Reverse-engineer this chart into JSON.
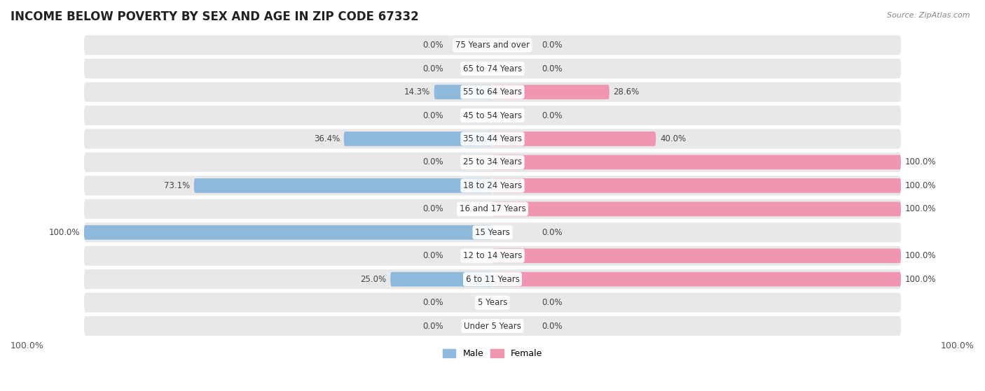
{
  "title": "INCOME BELOW POVERTY BY SEX AND AGE IN ZIP CODE 67332",
  "source": "Source: ZipAtlas.com",
  "categories": [
    "Under 5 Years",
    "5 Years",
    "6 to 11 Years",
    "12 to 14 Years",
    "15 Years",
    "16 and 17 Years",
    "18 to 24 Years",
    "25 to 34 Years",
    "35 to 44 Years",
    "45 to 54 Years",
    "55 to 64 Years",
    "65 to 74 Years",
    "75 Years and over"
  ],
  "male_values": [
    0.0,
    0.0,
    25.0,
    0.0,
    100.0,
    0.0,
    73.1,
    0.0,
    36.4,
    0.0,
    14.3,
    0.0,
    0.0
  ],
  "female_values": [
    0.0,
    0.0,
    100.0,
    100.0,
    0.0,
    100.0,
    100.0,
    100.0,
    40.0,
    0.0,
    28.6,
    0.0,
    0.0
  ],
  "male_color": "#8fb8dd",
  "female_color": "#f096b0",
  "row_bg_color": "#e8e8e8",
  "title_fontsize": 12,
  "label_fontsize": 8.5,
  "value_fontsize": 8.5,
  "axis_max": 100.0,
  "figsize": [
    14.06,
    5.59
  ],
  "dpi": 100
}
